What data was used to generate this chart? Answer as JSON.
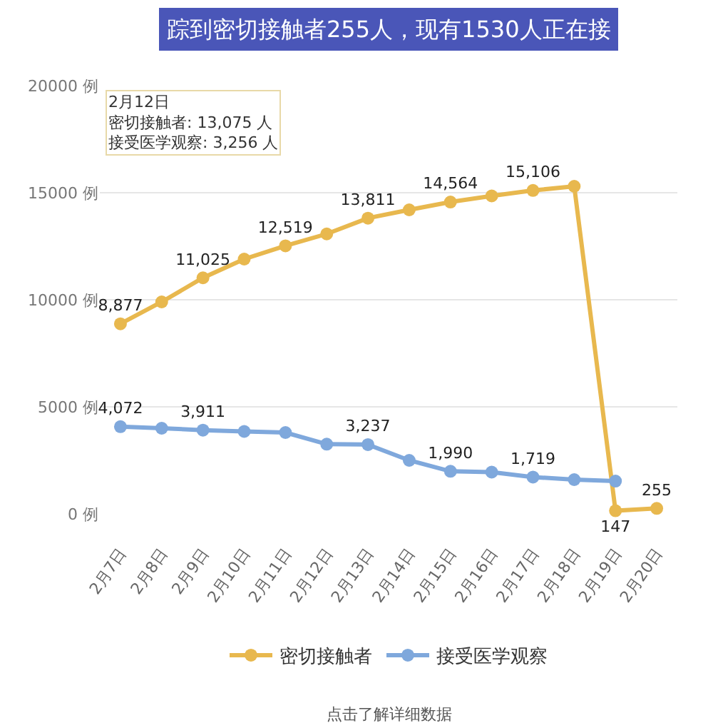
{
  "chart_data": {
    "type": "line",
    "title": "踪到密切接触者255人，现有1530人正在接",
    "categories": [
      "2月7日",
      "2月8日",
      "2月9日",
      "2月10日",
      "2月11日",
      "2月12日",
      "2月13日",
      "2月14日",
      "2月15日",
      "2月16日",
      "2月17日",
      "2月18日",
      "2月19日",
      "2月20日"
    ],
    "series": [
      {
        "name": "密切接触者",
        "color": "#e8b84e",
        "values": [
          8877,
          9900,
          11025,
          11900,
          12519,
          13075,
          13811,
          14200,
          14564,
          14850,
          15106,
          15300,
          147,
          255
        ],
        "value_labels": [
          "8,877",
          null,
          "11,025",
          null,
          "12,519",
          null,
          "13,811",
          null,
          "14,564",
          null,
          "15,106",
          null,
          "147",
          "255"
        ]
      },
      {
        "name": "接受医学观察",
        "color": "#7fa8dc",
        "values": [
          4072,
          4000,
          3911,
          3850,
          3800,
          3256,
          3237,
          2500,
          1990,
          1950,
          1719,
          1600,
          1530,
          null
        ],
        "value_labels": [
          "4,072",
          null,
          "3,911",
          null,
          null,
          null,
          "3,237",
          null,
          "1,990",
          null,
          "1,719",
          null,
          null,
          null
        ]
      }
    ],
    "ylim": [
      0,
      20000
    ],
    "yticks": [
      {
        "value": 0,
        "label": "0 例"
      },
      {
        "value": 5000,
        "label": "5000 例"
      },
      {
        "value": 10000,
        "label": "10000 例"
      },
      {
        "value": 15000,
        "label": "15000 例"
      },
      {
        "value": 20000,
        "label": "20000 例"
      }
    ],
    "grid": "y",
    "legend": "bottom",
    "marker": "circle",
    "line_style": "solid",
    "annotations": [
      "2月12日",
      "密切接触者: 13,075 人",
      "接受医学观察: 3,256 人",
      "点击了解详细数据"
    ]
  }
}
